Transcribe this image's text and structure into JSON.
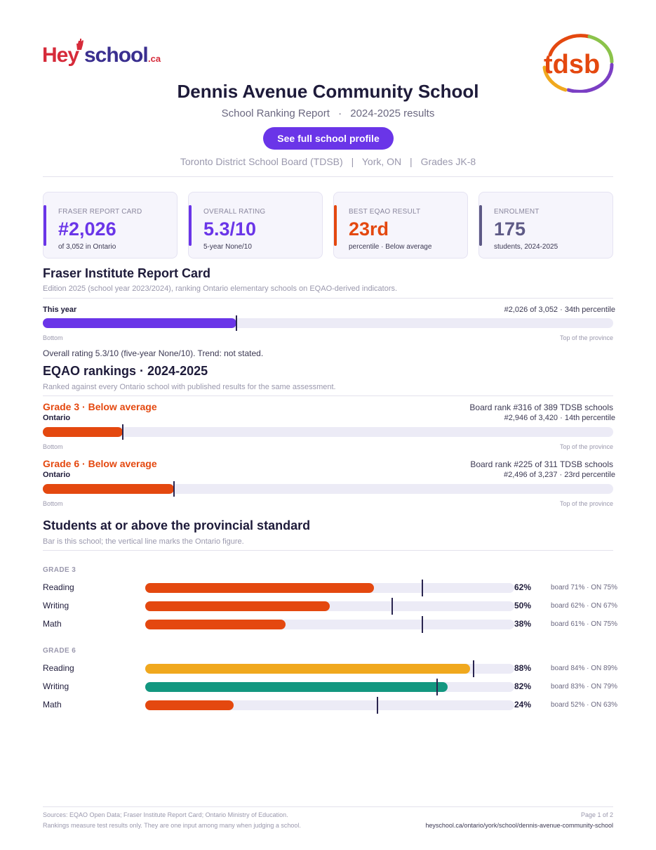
{
  "brand": {
    "hey": "Hey",
    "school": "school",
    "ca": ".ca",
    "board_logo": "tdsb"
  },
  "header": {
    "title": "Dennis Avenue Community School",
    "subtitle_report": "School Ranking Report",
    "subtitle_sep": "·",
    "subtitle_year": "2024-2025 results",
    "profile_button": "See full school profile",
    "board": "Toronto District School Board (TDSB)",
    "location": "York, ON",
    "grades": "Grades JK-8",
    "meta_sep": "|"
  },
  "cards": [
    {
      "label": "FRASER REPORT CARD",
      "value": "#2,026",
      "sub": "of 3,052 in Ontario",
      "color": "#6a35e8"
    },
    {
      "label": "OVERALL RATING",
      "value": "5.3/10",
      "sub": "5-year None/10",
      "color": "#6a35e8"
    },
    {
      "label": "BEST EQAO RESULT",
      "value": "23rd",
      "sub": "percentile  ·  Below average",
      "color": "#e4480f"
    },
    {
      "label": "ENROLMENT",
      "value": "175",
      "sub": "students, 2024-2025",
      "color": "#5e5a86"
    }
  ],
  "fraser": {
    "heading": "Fraser Institute Report Card",
    "note": "Edition 2025 (school year 2023/2024), ranking Ontario elementary schools on EQAO-derived indicators.",
    "row_label": "This year",
    "row_rank": "#2,026 of 3,052  ·  34th percentile",
    "percentile": 34,
    "axis_left": "Bottom",
    "axis_right": "Top of the province",
    "summary": "Overall rating 5.3/10 (five-year None/10). Trend: not stated."
  },
  "eqao": {
    "heading": "EQAO rankings  ·  2024-2025",
    "note": "Ranked against every Ontario school with published results for the same assessment.",
    "grades": [
      {
        "title": "Grade 3  ·  Below average",
        "scope": "Ontario",
        "board_rank": "Board rank #316 of 389 TDSB schools",
        "province_rank": "#2,946 of 3,420  ·  14th percentile",
        "percentile": 14
      },
      {
        "title": "Grade 6  ·  Below average",
        "scope": "Ontario",
        "board_rank": "Board rank #225 of 311 TDSB schools",
        "province_rank": "#2,496 of 3,237  ·  23rd percentile",
        "percentile": 23
      }
    ],
    "axis_left": "Bottom",
    "axis_right": "Top of the province",
    "bar_color": "#e4480f"
  },
  "standard": {
    "heading": "Students at or above the provincial standard",
    "note": "Bar is this school; the vertical line marks the Ontario figure.",
    "groups": [
      {
        "label": "GRADE 3",
        "rows": [
          {
            "subject": "Reading",
            "school": 62,
            "pct": "62%",
            "ontario": 75,
            "cmp": "board 71%  ·  ON 75%",
            "color": "#e4480f"
          },
          {
            "subject": "Writing",
            "school": 50,
            "pct": "50%",
            "ontario": 67,
            "cmp": "board 62%  ·  ON 67%",
            "color": "#e4480f"
          },
          {
            "subject": "Math",
            "school": 38,
            "pct": "38%",
            "ontario": 75,
            "cmp": "board 61%  ·  ON 75%",
            "color": "#e4480f"
          }
        ]
      },
      {
        "label": "GRADE 6",
        "rows": [
          {
            "subject": "Reading",
            "school": 88,
            "pct": "88%",
            "ontario": 89,
            "cmp": "board 84%  ·  ON 89%",
            "color": "#f0a81e"
          },
          {
            "subject": "Writing",
            "school": 82,
            "pct": "82%",
            "ontario": 79,
            "cmp": "board 83%  ·  ON 79%",
            "color": "#139780"
          },
          {
            "subject": "Math",
            "school": 24,
            "pct": "24%",
            "ontario": 63,
            "cmp": "board 52%  ·  ON 63%",
            "color": "#e4480f"
          }
        ]
      }
    ]
  },
  "footer": {
    "sources": "Sources: EQAO Open Data; Fraser Institute Report Card; Ontario Ministry of Education.",
    "disclaimer": "Rankings measure test results only. They are one input among many when judging a school.",
    "page": "Page 1 of 2",
    "url": "heyschool.ca/ontario/york/school/dennis-avenue-community-school"
  }
}
